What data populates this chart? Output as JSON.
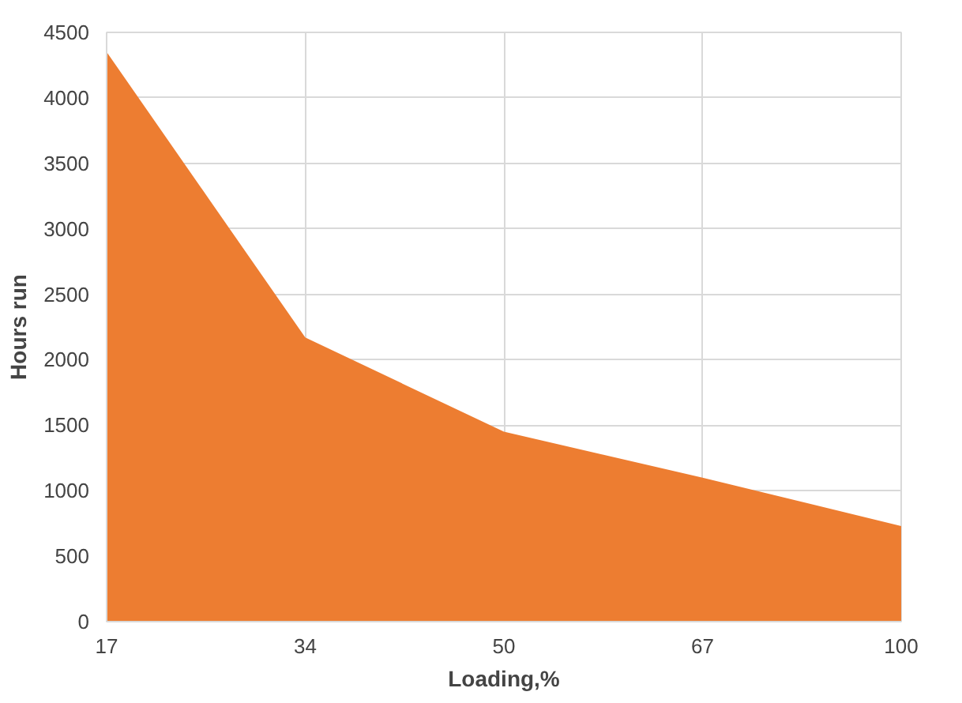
{
  "chart_data": {
    "type": "area",
    "xlabel": "Loading,%",
    "ylabel": "Hours run",
    "categories": [
      "17",
      "34",
      "50",
      "67",
      "100"
    ],
    "series": [
      {
        "color": "#ed7d31",
        "values": [
          4350,
          2170,
          1450,
          1100,
          730
        ]
      }
    ],
    "ylim": [
      0,
      4500
    ],
    "yticks": [
      0,
      500,
      1000,
      1500,
      2000,
      2500,
      3000,
      3500,
      4000,
      4500
    ],
    "grid": true
  }
}
